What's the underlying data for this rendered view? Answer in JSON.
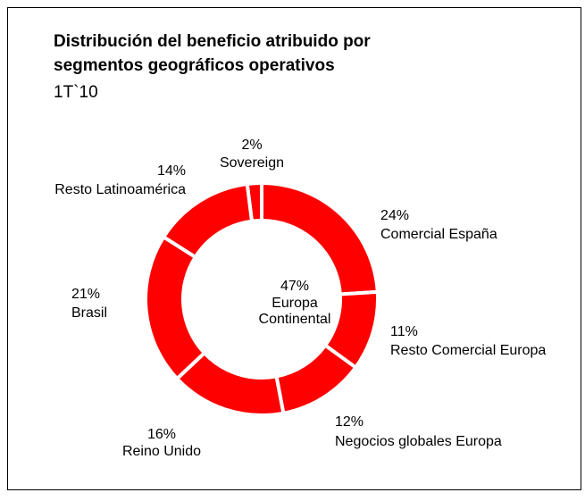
{
  "chart_data": {
    "type": "donut",
    "title": [
      "Distribución del beneficio atribuido por",
      "segmentos geográficos operativos"
    ],
    "subtitle": "1T`10",
    "categories": [
      "Sovereign",
      "Comercial España",
      "Resto Comercial Europa",
      "Negocios globales Europa",
      "Reino Unido",
      "Brasil",
      "Resto Latinoamérica"
    ],
    "values": [
      2,
      24,
      11,
      12,
      16,
      21,
      14
    ],
    "value_labels": [
      "2%",
      "24%",
      "11%",
      "12%",
      "16%",
      "21%",
      "14%"
    ],
    "color": "#ff0000",
    "center_label": "47%",
    "center_text": [
      "Europa",
      "Continental"
    ]
  }
}
